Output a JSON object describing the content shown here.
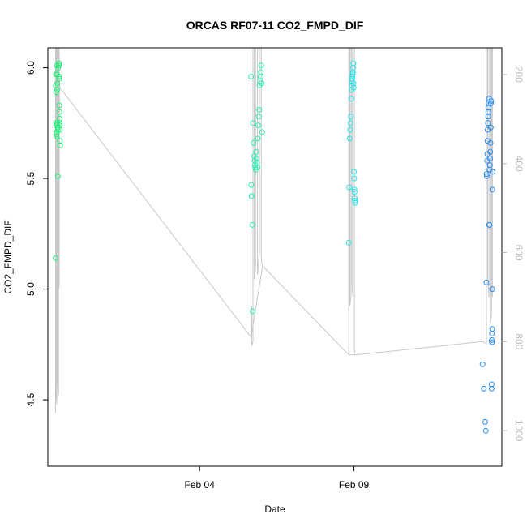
{
  "chart_data": {
    "type": "scatter",
    "title": "ORCAS RF07-11 CO2_FMPD_DIF",
    "xlabel": "Date",
    "ylabel": "CO2_FMPD_DIF",
    "x_unit": "date",
    "xlim": [
      "2016-01-30T02:00",
      "2016-02-13T19:00"
    ],
    "ylim": [
      4.2,
      6.09
    ],
    "x_ticks": [
      {
        "label": "Feb 04",
        "value": "2016-02-04T00:00"
      },
      {
        "label": "Feb 09",
        "value": "2016-02-09T00:00"
      }
    ],
    "y_ticks": [
      {
        "label": "4.5",
        "value": 4.5
      },
      {
        "label": "5.0",
        "value": 5.0
      },
      {
        "label": "5.5",
        "value": 5.5
      },
      {
        "label": "6.0",
        "value": 6.0
      }
    ],
    "secondary_axis": {
      "label": "",
      "inverted": true,
      "range": [
        1080,
        140
      ],
      "color": "#bbbbbb",
      "ticks": [
        {
          "label": "200",
          "value": 200
        },
        {
          "label": "400",
          "value": 400
        },
        {
          "label": "600",
          "value": 600
        },
        {
          "label": "800",
          "value": 800
        },
        {
          "label": "1000",
          "value": 1000
        }
      ]
    },
    "grid": false,
    "legend": "none",
    "point_style": "open-circle",
    "line_color": "#c8c8c8",
    "flights": [
      {
        "color": "#22f07a",
        "points": [
          [
            "2016-01-30T08:00",
            5.14
          ],
          [
            "2016-01-30T08:15",
            5.97
          ],
          [
            "2016-01-30T08:20",
            5.92
          ],
          [
            "2016-01-30T08:25",
            5.89
          ],
          [
            "2016-01-30T08:30",
            5.75
          ],
          [
            "2016-01-30T08:35",
            5.74
          ],
          [
            "2016-01-30T08:40",
            5.71
          ],
          [
            "2016-01-30T08:45",
            5.7
          ],
          [
            "2016-01-30T08:50",
            5.69
          ],
          [
            "2016-01-30T09:00",
            6.01
          ],
          [
            "2016-01-30T09:10",
            5.97
          ],
          [
            "2016-01-30T09:15",
            5.93
          ],
          [
            "2016-01-30T09:20",
            5.9
          ],
          [
            "2016-01-30T09:30",
            5.75
          ],
          [
            "2016-01-30T09:40",
            5.73
          ],
          [
            "2016-01-30T09:45",
            5.72
          ],
          [
            "2016-01-30T09:50",
            5.51
          ],
          [
            "2016-01-30T10:00",
            6.0
          ],
          [
            "2016-01-30T10:30",
            6.02
          ],
          [
            "2016-01-30T10:40",
            6.01
          ],
          [
            "2016-01-30T10:45",
            5.96
          ],
          [
            "2016-01-30T10:50",
            5.95
          ],
          [
            "2016-01-30T10:55",
            5.83
          ],
          [
            "2016-01-30T11:00",
            5.8
          ],
          [
            "2016-01-30T11:05",
            5.77
          ],
          [
            "2016-01-30T11:10",
            5.75
          ],
          [
            "2016-01-30T11:15",
            5.74
          ],
          [
            "2016-01-30T11:20",
            5.72
          ],
          [
            "2016-01-30T11:25",
            5.67
          ],
          [
            "2016-01-30T11:30",
            5.65
          ]
        ],
        "line": [
          [
            "2016-01-30T08:00",
            960
          ],
          [
            "2016-01-30T08:00",
            140
          ],
          [
            "2016-01-30T08:30",
            140
          ],
          [
            "2016-01-30T08:30",
            920
          ],
          [
            "2016-01-30T09:00",
            940
          ],
          [
            "2016-01-30T09:00",
            140
          ],
          [
            "2016-01-30T09:40",
            140
          ],
          [
            "2016-01-30T09:40",
            900
          ],
          [
            "2016-01-30T10:20",
            920
          ],
          [
            "2016-01-30T10:20",
            140
          ],
          [
            "2016-01-30T10:50",
            140
          ],
          [
            "2016-01-30T10:50",
            680
          ],
          [
            "2016-01-30T11:00",
            220
          ],
          [
            "2016-01-30T11:30",
            230
          ]
        ]
      },
      {
        "color": "#2ef0b4",
        "points": [
          [
            "2016-02-05T16:00",
            5.96
          ],
          [
            "2016-02-05T16:10",
            5.47
          ],
          [
            "2016-02-05T16:20",
            5.42
          ],
          [
            "2016-02-05T16:30",
            5.42
          ],
          [
            "2016-02-05T17:00",
            5.29
          ],
          [
            "2016-02-05T17:10",
            4.9
          ],
          [
            "2016-02-05T17:30",
            5.75
          ],
          [
            "2016-02-05T18:00",
            5.66
          ],
          [
            "2016-02-05T18:20",
            5.6
          ],
          [
            "2016-02-05T18:40",
            5.58
          ],
          [
            "2016-02-05T19:00",
            5.56
          ],
          [
            "2016-02-05T19:20",
            5.55
          ],
          [
            "2016-02-05T19:40",
            5.54
          ],
          [
            "2016-02-05T20:00",
            5.62
          ],
          [
            "2016-02-05T20:20",
            5.59
          ],
          [
            "2016-02-05T20:40",
            5.57
          ],
          [
            "2016-02-05T21:00",
            5.55
          ],
          [
            "2016-02-05T21:20",
            5.68
          ],
          [
            "2016-02-05T21:40",
            5.74
          ],
          [
            "2016-02-05T22:00",
            5.78
          ],
          [
            "2016-02-05T22:20",
            5.81
          ],
          [
            "2016-02-05T22:40",
            5.92
          ],
          [
            "2016-02-05T23:00",
            5.94
          ],
          [
            "2016-02-05T23:20",
            5.96
          ],
          [
            "2016-02-05T23:40",
            5.98
          ],
          [
            "2016-02-06T00:00",
            6.01
          ],
          [
            "2016-02-06T00:20",
            5.93
          ],
          [
            "2016-02-06T00:40",
            5.71
          ]
        ],
        "line": [
          [
            "2016-02-05T16:00",
            790
          ],
          [
            "2016-02-05T16:00",
            720
          ],
          [
            "2016-02-05T16:30",
            720
          ],
          [
            "2016-02-05T16:30",
            810
          ],
          [
            "2016-02-05T17:30",
            800
          ],
          [
            "2016-02-05T17:30",
            140
          ],
          [
            "2016-02-05T18:30",
            140
          ],
          [
            "2016-02-05T18:30",
            660
          ],
          [
            "2016-02-05T19:30",
            640
          ],
          [
            "2016-02-05T19:30",
            140
          ],
          [
            "2016-02-05T21:00",
            140
          ],
          [
            "2016-02-05T21:00",
            650
          ],
          [
            "2016-02-05T22:30",
            600
          ],
          [
            "2016-02-05T22:30",
            140
          ],
          [
            "2016-02-06T00:00",
            140
          ],
          [
            "2016-02-06T00:00",
            620
          ],
          [
            "2016-02-06T01:00",
            630
          ]
        ]
      },
      {
        "color": "#29e3e8",
        "points": [
          [
            "2016-02-08T20:00",
            5.21
          ],
          [
            "2016-02-08T20:20",
            5.46
          ],
          [
            "2016-02-08T20:40",
            5.68
          ],
          [
            "2016-02-08T21:00",
            5.72
          ],
          [
            "2016-02-08T21:20",
            5.75
          ],
          [
            "2016-02-08T21:40",
            5.78
          ],
          [
            "2016-02-08T22:00",
            5.86
          ],
          [
            "2016-02-08T22:10",
            5.9
          ],
          [
            "2016-02-08T22:20",
            5.92
          ],
          [
            "2016-02-08T22:30",
            5.94
          ],
          [
            "2016-02-08T22:40",
            5.95
          ],
          [
            "2016-02-08T22:50",
            5.96
          ],
          [
            "2016-02-08T23:00",
            5.97
          ],
          [
            "2016-02-08T23:10",
            5.98
          ],
          [
            "2016-02-08T23:20",
            6.0
          ],
          [
            "2016-02-08T23:30",
            6.02
          ],
          [
            "2016-02-08T23:40",
            5.93
          ],
          [
            "2016-02-08T23:50",
            5.91
          ],
          [
            "2016-02-09T00:00",
            5.53
          ],
          [
            "2016-02-09T00:10",
            5.5
          ],
          [
            "2016-02-09T00:20",
            5.45
          ],
          [
            "2016-02-09T00:30",
            5.44
          ],
          [
            "2016-02-09T00:40",
            5.41
          ],
          [
            "2016-02-09T00:50",
            5.4
          ],
          [
            "2016-02-09T01:00",
            5.39
          ]
        ],
        "line": [
          [
            "2016-02-08T20:00",
            830
          ],
          [
            "2016-02-08T20:00",
            140
          ],
          [
            "2016-02-08T20:50",
            140
          ],
          [
            "2016-02-08T20:50",
            720
          ],
          [
            "2016-02-08T21:40",
            700
          ],
          [
            "2016-02-08T21:40",
            140
          ],
          [
            "2016-02-08T22:30",
            140
          ],
          [
            "2016-02-08T22:30",
            680
          ],
          [
            "2016-02-08T23:20",
            700
          ],
          [
            "2016-02-08T23:20",
            140
          ],
          [
            "2016-02-09T00:20",
            140
          ],
          [
            "2016-02-09T00:20",
            820
          ],
          [
            "2016-02-09T01:00",
            830
          ]
        ]
      },
      {
        "color": "#2a8ef0",
        "points": [
          [
            "2016-02-13T04:00",
            4.66
          ],
          [
            "2016-02-13T05:00",
            4.55
          ],
          [
            "2016-02-13T06:00",
            4.4
          ],
          [
            "2016-02-13T06:30",
            4.36
          ],
          [
            "2016-02-13T07:00",
            5.03
          ],
          [
            "2016-02-13T07:10",
            5.52
          ],
          [
            "2016-02-13T07:20",
            5.51
          ],
          [
            "2016-02-13T07:30",
            5.58
          ],
          [
            "2016-02-13T07:40",
            5.61
          ],
          [
            "2016-02-13T07:50",
            5.67
          ],
          [
            "2016-02-13T08:00",
            5.72
          ],
          [
            "2016-02-13T08:10",
            5.75
          ],
          [
            "2016-02-13T08:20",
            5.78
          ],
          [
            "2016-02-13T08:30",
            5.8
          ],
          [
            "2016-02-13T08:40",
            5.82
          ],
          [
            "2016-02-13T08:50",
            5.84
          ],
          [
            "2016-02-13T09:00",
            5.86
          ],
          [
            "2016-02-13T09:10",
            5.29
          ],
          [
            "2016-02-13T09:20",
            5.29
          ],
          [
            "2016-02-13T09:30",
            5.54
          ],
          [
            "2016-02-13T09:40",
            5.56
          ],
          [
            "2016-02-13T09:50",
            5.59
          ],
          [
            "2016-02-13T10:00",
            5.62
          ],
          [
            "2016-02-13T10:10",
            5.66
          ],
          [
            "2016-02-13T10:20",
            5.73
          ],
          [
            "2016-02-13T10:30",
            5.84
          ],
          [
            "2016-02-13T10:40",
            5.85
          ],
          [
            "2016-02-13T11:00",
            4.57
          ],
          [
            "2016-02-13T11:05",
            4.55
          ],
          [
            "2016-02-13T11:10",
            4.77
          ],
          [
            "2016-02-13T11:15",
            4.76
          ],
          [
            "2016-02-13T11:20",
            4.8
          ],
          [
            "2016-02-13T11:25",
            4.82
          ],
          [
            "2016-02-13T11:30",
            5.0
          ],
          [
            "2016-02-13T11:35",
            5.45
          ],
          [
            "2016-02-13T11:40",
            5.53
          ]
        ],
        "line": [
          [
            "2016-02-13T04:00",
            800
          ],
          [
            "2016-02-13T07:00",
            805
          ],
          [
            "2016-02-13T07:00",
            140
          ],
          [
            "2016-02-13T08:00",
            140
          ],
          [
            "2016-02-13T08:00",
            660
          ],
          [
            "2016-02-13T09:00",
            700
          ],
          [
            "2016-02-13T09:00",
            140
          ],
          [
            "2016-02-13T10:00",
            140
          ],
          [
            "2016-02-13T10:00",
            760
          ],
          [
            "2016-02-13T11:00",
            740
          ],
          [
            "2016-02-13T11:00",
            140
          ],
          [
            "2016-02-13T11:40",
            140
          ],
          [
            "2016-02-13T11:40",
            700
          ]
        ]
      }
    ],
    "connecting_line": [
      [
        "2016-01-30T11:30",
        230
      ],
      [
        "2016-02-05T16:00",
        790
      ],
      [
        "2016-02-06T01:00",
        630
      ],
      [
        "2016-02-08T20:00",
        830
      ],
      [
        "2016-02-09T01:00",
        830
      ],
      [
        "2016-02-13T04:00",
        800
      ]
    ]
  }
}
